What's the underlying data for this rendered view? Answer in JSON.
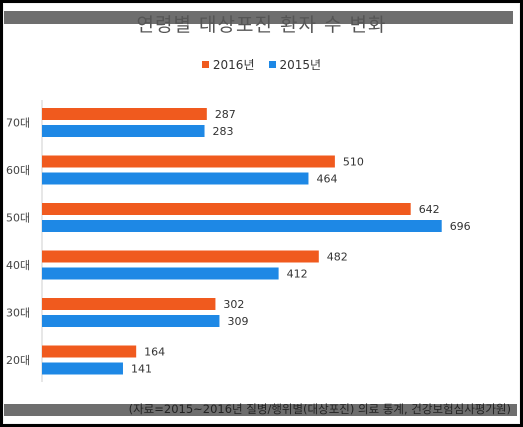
{
  "chart_data": {
    "type": "bar",
    "orientation": "horizontal",
    "title": "연령별 대상포진 환자 수 변화",
    "categories": [
      "70대",
      "60대",
      "50대",
      "40대",
      "30대",
      "20대"
    ],
    "series": [
      {
        "name": "2016년",
        "color": "#f05a1e",
        "values": [
          287,
          510,
          642,
          482,
          302,
          164
        ]
      },
      {
        "name": "2015년",
        "color": "#1e88e5",
        "values": [
          283,
          464,
          696,
          412,
          309,
          141
        ]
      }
    ],
    "xlim": [
      0,
      720
    ],
    "grid": false,
    "legend_position": "top-center",
    "source": "(자료=2015~2016년 질병/행위별(대상포진) 의료 통계, 건강보험심사평가원)"
  }
}
